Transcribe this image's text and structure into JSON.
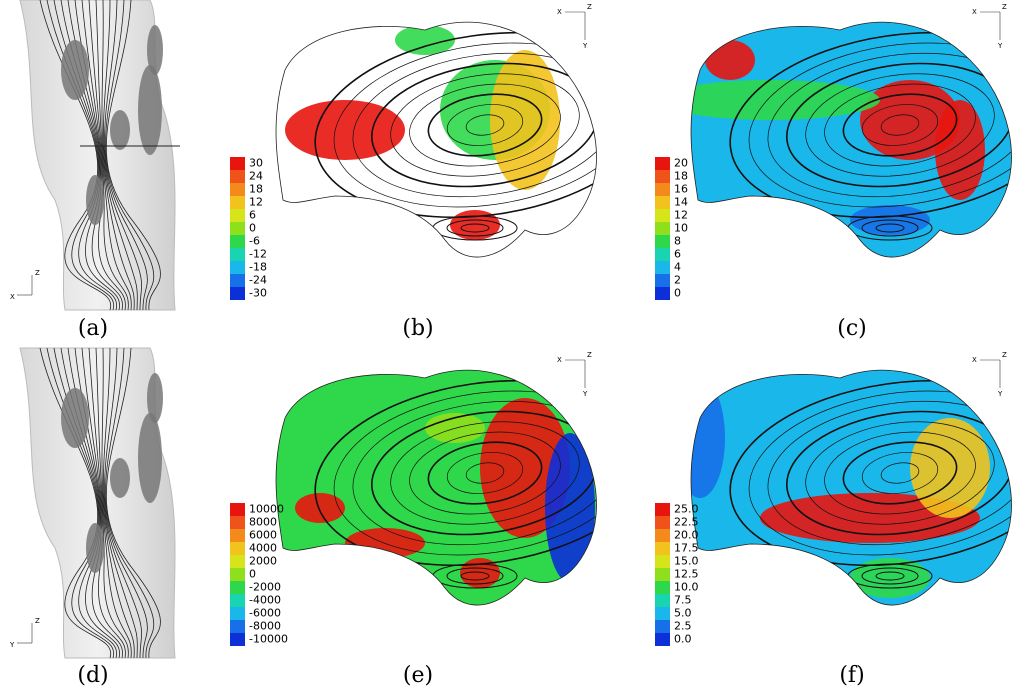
{
  "panels": [
    {
      "label": "(a)",
      "axes": [
        "Z",
        "X"
      ]
    },
    {
      "label": "(b)",
      "axes": [
        "X",
        "Z",
        "Y"
      ],
      "colorbar": [
        "30",
        "24",
        "18",
        "12",
        "6",
        "0",
        "-6",
        "-12",
        "-18",
        "-24",
        "-30"
      ]
    },
    {
      "label": "(c)",
      "axes": [
        "X",
        "Z",
        "Y"
      ],
      "colorbar": [
        "20",
        "18",
        "16",
        "14",
        "12",
        "10",
        "8",
        "6",
        "4",
        "2",
        "0"
      ]
    },
    {
      "label": "(d)",
      "axes": [
        "Z",
        "Y"
      ]
    },
    {
      "label": "(e)",
      "axes": [
        "X",
        "Z",
        "Y"
      ],
      "colorbar": [
        "10000",
        "8000",
        "6000",
        "4000",
        "2000",
        "0",
        "-2000",
        "-4000",
        "-6000",
        "-8000",
        "-10000"
      ]
    },
    {
      "label": "(f)",
      "axes": [
        "X",
        "Z",
        "Y"
      ],
      "colorbar": [
        "25.0",
        "22.5",
        "20.0",
        "17.5",
        "15.0",
        "12.5",
        "10.0",
        "7.5",
        "5.0",
        "2.5",
        "0.0"
      ]
    }
  ]
}
